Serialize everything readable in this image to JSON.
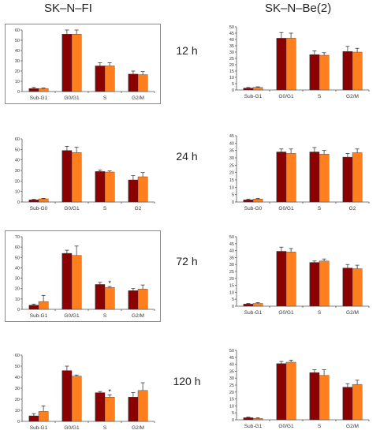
{
  "column_titles": [
    "SK–N–FI",
    "SK–N–Be(2)"
  ],
  "time_labels": [
    "12 h",
    "24 h",
    "72 h",
    "120 h"
  ],
  "colors": {
    "series1": "#8b0000",
    "series2": "#ff7f1f",
    "frame": "#8a8a8a"
  },
  "chart_data": [
    {
      "type": "bar",
      "categories": [
        "Sub-G1",
        "G0/G1",
        "S",
        "G2/M"
      ],
      "series": [
        {
          "values": [
            3,
            56,
            25,
            17
          ],
          "err": [
            1,
            4,
            3,
            3
          ]
        },
        {
          "values": [
            3,
            56,
            25,
            16.5
          ],
          "err": [
            0.5,
            4,
            3,
            3
          ]
        }
      ],
      "ylim": [
        0,
        60
      ],
      "yticks": [
        0,
        10,
        20,
        30,
        40,
        50,
        60
      ],
      "boxed": true,
      "annotations": []
    },
    {
      "type": "bar",
      "categories": [
        "Sub-G1",
        "G0/G1",
        "S",
        "G2/M"
      ],
      "series": [
        {
          "values": [
            1.5,
            41,
            28,
            30.5
          ],
          "err": [
            0.5,
            4.5,
            3,
            4
          ]
        },
        {
          "values": [
            2,
            41,
            27.5,
            30
          ],
          "err": [
            0.5,
            4,
            2,
            3
          ]
        }
      ],
      "ylim": [
        0,
        50
      ],
      "yticks": [
        0,
        5,
        10,
        15,
        20,
        25,
        30,
        35,
        40,
        45,
        50
      ],
      "boxed": false,
      "annotations": []
    },
    {
      "type": "bar",
      "categories": [
        "Sub-G0",
        "G0/G1",
        "S",
        "G2"
      ],
      "series": [
        {
          "values": [
            2,
            49,
            29,
            21
          ],
          "err": [
            0.5,
            4,
            1.5,
            4
          ]
        },
        {
          "values": [
            3,
            47,
            28.5,
            24
          ],
          "err": [
            0.5,
            5,
            1,
            4
          ]
        }
      ],
      "ylim": [
        0,
        60
      ],
      "yticks": [
        0,
        10,
        20,
        30,
        40,
        50,
        60
      ],
      "boxed": false,
      "annotations": []
    },
    {
      "type": "bar",
      "categories": [
        "Sub-G0",
        "G0/G1",
        "S",
        "G2"
      ],
      "series": [
        {
          "values": [
            1.5,
            34,
            34,
            30.5
          ],
          "err": [
            0.5,
            2,
            3,
            2.5
          ]
        },
        {
          "values": [
            2,
            33,
            32.5,
            33.5
          ],
          "err": [
            0.5,
            3,
            2.5,
            2.5
          ]
        }
      ],
      "ylim": [
        0,
        45
      ],
      "yticks": [
        0,
        5,
        10,
        15,
        20,
        25,
        30,
        35,
        40,
        45
      ],
      "boxed": false,
      "annotations": []
    },
    {
      "type": "bar",
      "categories": [
        "Sub-G1",
        "G0/G1",
        "S",
        "G2/M"
      ],
      "series": [
        {
          "values": [
            4,
            54,
            24,
            18
          ],
          "err": [
            1,
            3,
            2,
            2
          ]
        },
        {
          "values": [
            7.5,
            52,
            21,
            19.5
          ],
          "err": [
            6,
            9,
            1,
            4
          ]
        }
      ],
      "ylim": [
        0,
        70
      ],
      "yticks": [
        0,
        10,
        20,
        30,
        40,
        50,
        60,
        70
      ],
      "boxed": true,
      "annotations": [
        {
          "text": "*",
          "category": 2,
          "series": 1
        }
      ]
    },
    {
      "type": "bar",
      "categories": [
        "Sub-G1",
        "G0/G1",
        "S",
        "G2/M"
      ],
      "series": [
        {
          "values": [
            1.5,
            39.5,
            31.5,
            27.5
          ],
          "err": [
            0.5,
            3,
            1,
            2.5
          ]
        },
        {
          "values": [
            2,
            39,
            32.5,
            27
          ],
          "err": [
            0.5,
            2.5,
            1.5,
            2.5
          ]
        }
      ],
      "ylim": [
        0,
        50
      ],
      "yticks": [
        0,
        5,
        10,
        15,
        20,
        25,
        30,
        35,
        40,
        45,
        50
      ],
      "boxed": false,
      "annotations": []
    },
    {
      "type": "bar",
      "categories": [
        "Sub-G1",
        "G0/G1",
        "S",
        "G2/M"
      ],
      "series": [
        {
          "values": [
            5,
            46,
            26,
            22
          ],
          "err": [
            2,
            4,
            1,
            4
          ]
        },
        {
          "values": [
            9,
            41,
            22,
            28
          ],
          "err": [
            5,
            1,
            2,
            7
          ]
        }
      ],
      "ylim": [
        0,
        60
      ],
      "yticks": [
        0,
        10,
        20,
        30,
        40,
        50,
        60
      ],
      "boxed": false,
      "annotations": [
        {
          "text": "*",
          "category": 2,
          "series": 1
        }
      ]
    },
    {
      "type": "bar",
      "categories": [
        "Sub-G1",
        "G0/G1",
        "S",
        "G2/M"
      ],
      "series": [
        {
          "values": [
            1.5,
            40.5,
            34,
            23.5
          ],
          "err": [
            0.5,
            1.5,
            2,
            2.5
          ]
        },
        {
          "values": [
            1,
            41.5,
            32,
            25.5
          ],
          "err": [
            0.5,
            1.5,
            4,
            3
          ]
        }
      ],
      "ylim": [
        0,
        50
      ],
      "yticks": [
        0,
        5,
        10,
        15,
        20,
        25,
        30,
        35,
        40,
        45,
        50
      ],
      "boxed": false,
      "annotations": []
    }
  ]
}
